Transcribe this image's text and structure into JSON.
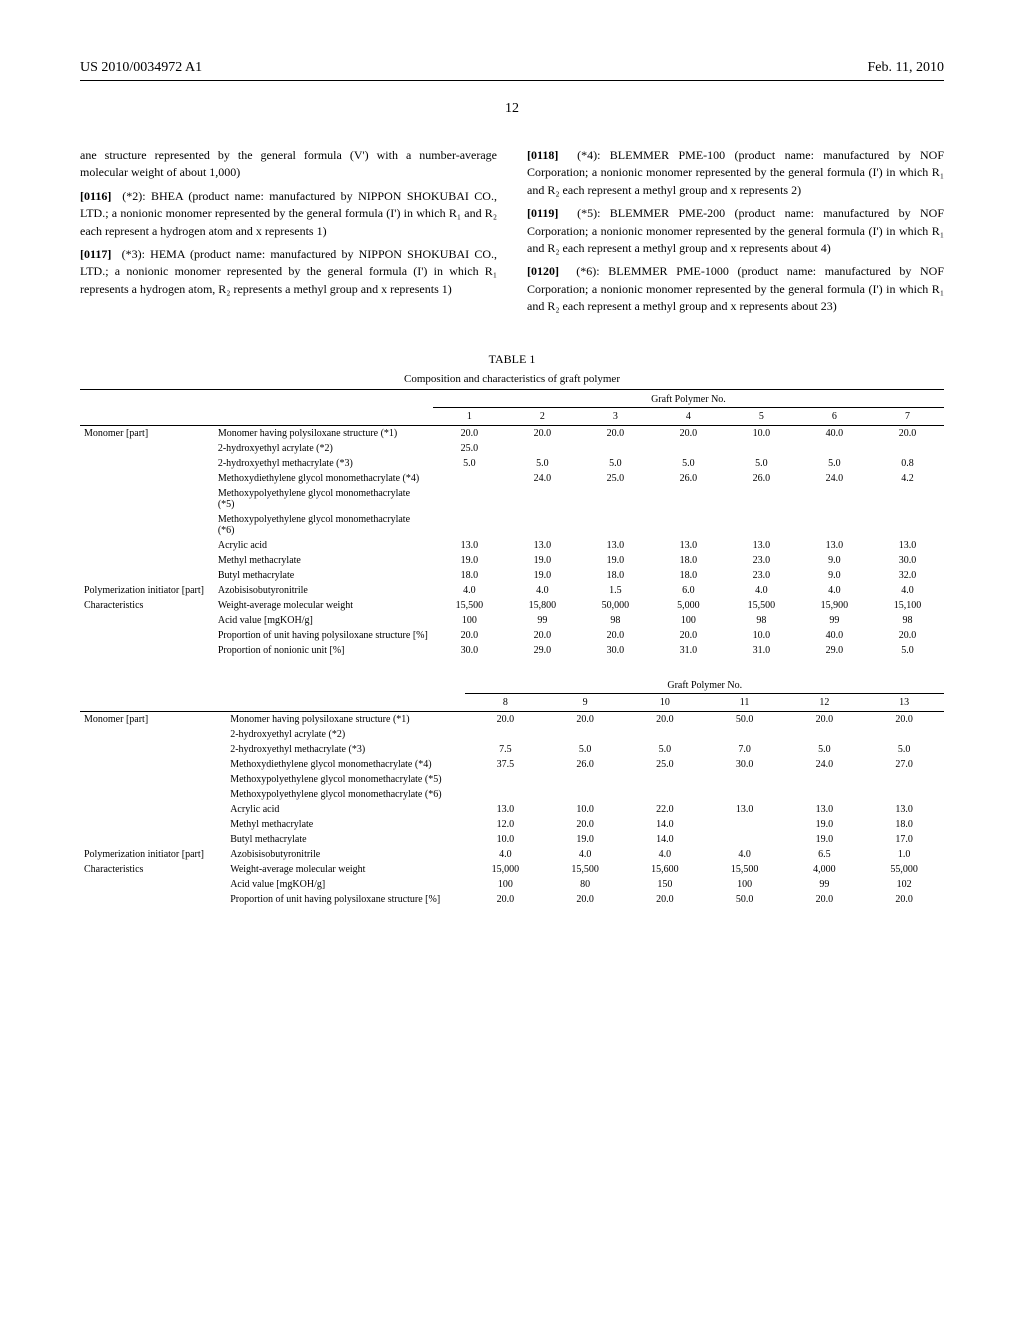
{
  "header": {
    "left": "US 2010/0034972 A1",
    "right": "Feb. 11, 2010"
  },
  "page_number": "12",
  "left_col": [
    {
      "text": "ane structure represented by the general formula (V') with a number-average molecular weight of about 1,000)"
    },
    {
      "num": "[0116]",
      "text": "(*2): BHEA (product name: manufactured by NIPPON SHOKUBAI CO., LTD.; a nonionic monomer represented by the general formula (I') in which R₁ and R₂ each represent a hydrogen atom and x represents 1)"
    },
    {
      "num": "[0117]",
      "text": "(*3): HEMA (product name: manufactured by NIPPON SHOKUBAI CO., LTD.; a nonionic monomer represented by the general formula (I') in which R₁ represents a hydrogen atom, R₂ represents a methyl group and x represents 1)"
    }
  ],
  "right_col": [
    {
      "num": "[0118]",
      "text": "(*4): BLEMMER PME-100 (product name: manufactured by NOF Corporation; a nonionic monomer represented by the general formula (I') in which R₁ and R₂ each represent a methyl group and x represents 2)"
    },
    {
      "num": "[0119]",
      "text": "(*5): BLEMMER PME-200 (product name: manufactured by NOF Corporation; a nonionic monomer represented by the general formula (I') in which R₁ and R₂ each represent a methyl group and x represents about 4)"
    },
    {
      "num": "[0120]",
      "text": "(*6): BLEMMER PME-1000 (product name: manufactured by NOF Corporation; a nonionic monomer represented by the general formula (I') in which R₁ and R₂ each represent a methyl group and x represents about 23)"
    }
  ],
  "table1": {
    "label": "TABLE 1",
    "subtitle": "Composition and characteristics of graft polymer",
    "group": "Graft Polymer No.",
    "cols": [
      "1",
      "2",
      "3",
      "4",
      "5",
      "6",
      "7"
    ],
    "groups": [
      {
        "label": "Monomer [part]",
        "rows": [
          {
            "n": "Monomer having polysiloxane structure (*1)",
            "v": [
              "20.0",
              "20.0",
              "20.0",
              "20.0",
              "10.0",
              "40.0",
              "20.0"
            ]
          },
          {
            "n": "2-hydroxyethyl acrylate (*2)",
            "v": [
              "25.0",
              "",
              "",
              "",
              "",
              "",
              ""
            ]
          },
          {
            "n": "2-hydroxyethyl methacrylate (*3)",
            "v": [
              "5.0",
              "5.0",
              "5.0",
              "5.0",
              "5.0",
              "5.0",
              "0.8"
            ]
          },
          {
            "n": "Methoxydiethylene glycol monomethacrylate (*4)",
            "v": [
              "",
              "24.0",
              "25.0",
              "26.0",
              "26.0",
              "24.0",
              "4.2"
            ]
          },
          {
            "n": "Methoxypolyethylene glycol monomethacrylate (*5)",
            "v": [
              "",
              "",
              "",
              "",
              "",
              "",
              ""
            ]
          },
          {
            "n": "Methoxypolyethylene glycol monomethacrylate (*6)",
            "v": [
              "",
              "",
              "",
              "",
              "",
              "",
              ""
            ]
          },
          {
            "n": "Acrylic acid",
            "v": [
              "13.0",
              "13.0",
              "13.0",
              "13.0",
              "13.0",
              "13.0",
              "13.0"
            ]
          },
          {
            "n": "Methyl methacrylate",
            "v": [
              "19.0",
              "19.0",
              "19.0",
              "18.0",
              "23.0",
              "9.0",
              "30.0"
            ]
          },
          {
            "n": "Butyl methacrylate",
            "v": [
              "18.0",
              "19.0",
              "18.0",
              "18.0",
              "23.0",
              "9.0",
              "32.0"
            ]
          }
        ]
      },
      {
        "label": "Polymerization initiator [part]",
        "rows": [
          {
            "n": "Azobisisobutyronitrile",
            "v": [
              "4.0",
              "4.0",
              "1.5",
              "6.0",
              "4.0",
              "4.0",
              "4.0"
            ]
          }
        ]
      },
      {
        "label": "Characteristics",
        "rows": [
          {
            "n": "Weight-average molecular weight",
            "v": [
              "15,500",
              "15,800",
              "50,000",
              "5,000",
              "15,500",
              "15,900",
              "15,100"
            ]
          },
          {
            "n": "Acid value [mgKOH/g]",
            "v": [
              "100",
              "99",
              "98",
              "100",
              "98",
              "99",
              "98"
            ]
          },
          {
            "n": "Proportion of unit having polysiloxane structure [%]",
            "v": [
              "20.0",
              "20.0",
              "20.0",
              "20.0",
              "10.0",
              "40.0",
              "20.0"
            ]
          },
          {
            "n": "Proportion of nonionic unit [%]",
            "v": [
              "30.0",
              "29.0",
              "30.0",
              "31.0",
              "31.0",
              "29.0",
              "5.0"
            ]
          }
        ]
      }
    ]
  },
  "table2": {
    "group": "Graft Polymer No.",
    "cols": [
      "8",
      "9",
      "10",
      "11",
      "12",
      "13"
    ],
    "groups": [
      {
        "label": "Monomer [part]",
        "rows": [
          {
            "n": "Monomer having polysiloxane structure (*1)",
            "v": [
              "20.0",
              "20.0",
              "20.0",
              "50.0",
              "20.0",
              "20.0"
            ]
          },
          {
            "n": "2-hydroxyethyl acrylate (*2)",
            "v": [
              "",
              "",
              "",
              "",
              "",
              ""
            ]
          },
          {
            "n": "2-hydroxyethyl methacrylate (*3)",
            "v": [
              "7.5",
              "5.0",
              "5.0",
              "7.0",
              "5.0",
              "5.0"
            ]
          },
          {
            "n": "Methoxydiethylene glycol monomethacrylate (*4)",
            "v": [
              "37.5",
              "26.0",
              "25.0",
              "30.0",
              "24.0",
              "27.0"
            ]
          },
          {
            "n": "Methoxypolyethylene glycol monomethacrylate (*5)",
            "v": [
              "",
              "",
              "",
              "",
              "",
              ""
            ]
          },
          {
            "n": "Methoxypolyethylene glycol monomethacrylate (*6)",
            "v": [
              "",
              "",
              "",
              "",
              "",
              ""
            ]
          },
          {
            "n": "Acrylic acid",
            "v": [
              "13.0",
              "10.0",
              "22.0",
              "13.0",
              "13.0",
              "13.0"
            ]
          },
          {
            "n": "Methyl methacrylate",
            "v": [
              "12.0",
              "20.0",
              "14.0",
              "",
              "19.0",
              "18.0"
            ]
          },
          {
            "n": "Butyl methacrylate",
            "v": [
              "10.0",
              "19.0",
              "14.0",
              "",
              "19.0",
              "17.0"
            ]
          }
        ]
      },
      {
        "label": "Polymerization initiator [part]",
        "rows": [
          {
            "n": "Azobisisobutyronitrile",
            "v": [
              "4.0",
              "4.0",
              "4.0",
              "4.0",
              "6.5",
              "1.0"
            ]
          }
        ]
      },
      {
        "label": "Characteristics",
        "rows": [
          {
            "n": "Weight-average molecular weight",
            "v": [
              "15,000",
              "15,500",
              "15,600",
              "15,500",
              "4,000",
              "55,000"
            ]
          },
          {
            "n": "Acid value [mgKOH/g]",
            "v": [
              "100",
              "80",
              "150",
              "100",
              "99",
              "102"
            ]
          },
          {
            "n": "Proportion of unit having polysiloxane structure [%]",
            "v": [
              "20.0",
              "20.0",
              "20.0",
              "50.0",
              "20.0",
              "20.0"
            ]
          }
        ]
      }
    ]
  }
}
